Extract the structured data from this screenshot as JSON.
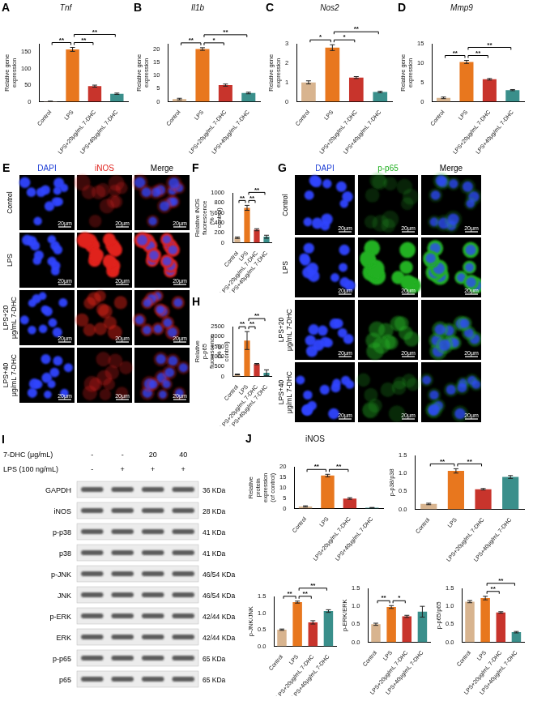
{
  "chart_data": [
    {
      "type": "bar",
      "panel": "A",
      "title": "Tnf",
      "ylabel": "Relative gene expression",
      "categories": [
        "Control",
        "LPS",
        "LPS+20μg/mL 7-DHC",
        "LPS+40μg/mL 7-DHC"
      ],
      "values": [
        1,
        158,
        47,
        24
      ],
      "errors": [
        0.5,
        6,
        3,
        2
      ],
      "colors": [
        "#d8b48f",
        "#e8771e",
        "#c8342c",
        "#3a8f8b"
      ],
      "ylim": [
        0,
        175
      ],
      "yticks": [
        0,
        50,
        100,
        150
      ],
      "grid": false,
      "annotations": [
        {
          "from": "Control",
          "to": "LPS",
          "label": "**"
        },
        {
          "from": "LPS",
          "to": "LPS+20μg/mL 7-DHC",
          "label": "**"
        },
        {
          "from": "LPS",
          "to": "LPS+40μg/mL 7-DHC",
          "label": "**"
        }
      ]
    },
    {
      "type": "bar",
      "panel": "B",
      "title": "Il1b",
      "ylabel": "Relative gene expression",
      "categories": [
        "Control",
        "LPS",
        "LPS+20μg/mL 7-DHC",
        "LPS+40μg/mL 7-DHC"
      ],
      "values": [
        1,
        20,
        6.3,
        3.3
      ],
      "errors": [
        0.3,
        0.5,
        0.4,
        0.3
      ],
      "colors": [
        "#d8b48f",
        "#e8771e",
        "#c8342c",
        "#3a8f8b"
      ],
      "ylim": [
        0,
        22
      ],
      "yticks": [
        0,
        5,
        10,
        15,
        20
      ],
      "grid": false,
      "annotations": [
        {
          "from": "Control",
          "to": "LPS",
          "label": "**"
        },
        {
          "from": "LPS",
          "to": "LPS+20μg/mL 7-DHC",
          "label": "*"
        },
        {
          "from": "LPS",
          "to": "LPS+40μg/mL 7-DHC",
          "label": "**"
        }
      ]
    },
    {
      "type": "bar",
      "panel": "C",
      "title": "Nos2",
      "ylabel": "Relative gene expression",
      "categories": [
        "Control",
        "LPS",
        "LPS+20μg/mL 7-DHC",
        "LPS+40μg/mL 7-DHC"
      ],
      "values": [
        1,
        2.8,
        1.25,
        0.5
      ],
      "errors": [
        0.08,
        0.15,
        0.05,
        0.04
      ],
      "colors": [
        "#d8b48f",
        "#e8771e",
        "#c8342c",
        "#3a8f8b"
      ],
      "ylim": [
        0,
        3
      ],
      "yticks": [
        0,
        1,
        2,
        3
      ],
      "grid": false,
      "annotations": [
        {
          "from": "Control",
          "to": "LPS",
          "label": "*"
        },
        {
          "from": "LPS",
          "to": "LPS+20μg/mL 7-DHC",
          "label": "*"
        },
        {
          "from": "LPS",
          "to": "LPS+40μg/mL 7-DHC",
          "label": "**"
        }
      ]
    },
    {
      "type": "bar",
      "panel": "D",
      "title": "Mmp9",
      "ylabel": "Relative gene expression",
      "categories": [
        "Control",
        "LPS",
        "LPS+20μg/mL 7-DHC",
        "LPS+40μg/mL 7-DHC"
      ],
      "values": [
        1,
        10.3,
        5.8,
        3
      ],
      "errors": [
        0.2,
        0.4,
        0.2,
        0.15
      ],
      "colors": [
        "#d8b48f",
        "#e8771e",
        "#c8342c",
        "#3a8f8b"
      ],
      "ylim": [
        0,
        15
      ],
      "yticks": [
        0,
        5,
        10,
        15
      ],
      "grid": false,
      "annotations": [
        {
          "from": "Control",
          "to": "LPS",
          "label": "**"
        },
        {
          "from": "LPS",
          "to": "LPS+20μg/mL 7-DHC",
          "label": "**"
        },
        {
          "from": "LPS",
          "to": "LPS+40μg/mL 7-DHC",
          "label": "**"
        }
      ]
    },
    {
      "type": "bar",
      "panel": "F",
      "ylabel": "Relative iNOS fluorescence (% of control)",
      "categories": [
        "Control",
        "LPS",
        "LPS+20μg/mL 7-DHC",
        "LPS+40μg/mL 7-DHC"
      ],
      "values": [
        100,
        700,
        260,
        120
      ],
      "errors": [
        15,
        50,
        20,
        30
      ],
      "colors": [
        "#d8b48f",
        "#e8771e",
        "#c8342c",
        "#3a8f8b"
      ],
      "ylim": [
        0,
        1000
      ],
      "yticks": [
        0,
        200,
        400,
        600,
        800,
        1000
      ],
      "grid": false,
      "annotations": [
        {
          "from": "Control",
          "to": "LPS",
          "label": "**"
        },
        {
          "from": "LPS",
          "to": "LPS+20μg/mL 7-DHC",
          "label": "**"
        },
        {
          "from": "LPS",
          "to": "LPS+40μg/mL 7-DHC",
          "label": "**"
        }
      ]
    },
    {
      "type": "bar",
      "panel": "H",
      "ylabel": "Relative p-p65 fluorescence (% of control)",
      "categories": [
        "Control",
        "LPS",
        "LPS+20μg/mL 7-DHC",
        "LPS+40μg/mL 7-DHC"
      ],
      "values": [
        100,
        1800,
        620,
        180
      ],
      "errors": [
        20,
        450,
        30,
        150
      ],
      "colors": [
        "#d8b48f",
        "#e8771e",
        "#c8342c",
        "#3a8f8b"
      ],
      "ylim": [
        0,
        2500
      ],
      "yticks": [
        0,
        500,
        1000,
        1500,
        2000,
        2500
      ],
      "grid": false,
      "annotations": [
        {
          "from": "Control",
          "to": "LPS",
          "label": "**"
        },
        {
          "from": "LPS",
          "to": "LPS+20μg/mL 7-DHC",
          "label": "**"
        },
        {
          "from": "LPS",
          "to": "LPS+40μg/mL 7-DHC",
          "label": "**"
        }
      ]
    },
    {
      "type": "bar",
      "panel": "J",
      "title": "iNOS",
      "ylabel": "Relative protein expression (of control)",
      "categories": [
        "Control",
        "LPS",
        "LPS+20μg/mL 7-DHC",
        "LPS+40μg/mL 7-DHC"
      ],
      "values": [
        1,
        15.8,
        4.8,
        0.4
      ],
      "errors": [
        0.3,
        0.6,
        0.4,
        0.1
      ],
      "colors": [
        "#d8b48f",
        "#e8771e",
        "#c8342c",
        "#3a8f8b"
      ],
      "ylim": [
        0,
        20
      ],
      "yticks": [
        0,
        5,
        10,
        15,
        20
      ],
      "grid": false,
      "annotations": [
        {
          "from": "Control",
          "to": "LPS",
          "label": "**"
        },
        {
          "from": "LPS",
          "to": "LPS+20μg/mL 7-DHC",
          "label": "**"
        }
      ]
    },
    {
      "type": "bar",
      "ylabel": "p-p38/p38",
      "categories": [
        "Control",
        "LPS",
        "LPS+20μg/mL 7-DHC",
        "LPS+40μg/mL 7-DHC"
      ],
      "values": [
        0.15,
        1.07,
        0.56,
        0.9
      ],
      "errors": [
        0.02,
        0.06,
        0.02,
        0.04
      ],
      "colors": [
        "#d8b48f",
        "#e8771e",
        "#c8342c",
        "#3a8f8b"
      ],
      "ylim": [
        0,
        1.5
      ],
      "yticks": [
        {
          "value": 0,
          "label": "0.0"
        },
        0.5,
        {
          "value": 1,
          "label": "1.0"
        },
        1.5
      ],
      "grid": false,
      "annotations": [
        {
          "from": "Control",
          "to": "LPS",
          "label": "**"
        },
        {
          "from": "LPS",
          "to": "LPS+20μg/mL 7-DHC",
          "label": "**"
        }
      ]
    },
    {
      "type": "bar",
      "ylabel": "p-JNK/JNK",
      "categories": [
        "Control",
        "LPS",
        "LPS+20μg/mL 7-DHC",
        "LPS+40μg/mL 7-DHC"
      ],
      "values": [
        0.5,
        1.33,
        0.72,
        1.06
      ],
      "errors": [
        0.02,
        0.03,
        0.05,
        0.04
      ],
      "colors": [
        "#d8b48f",
        "#e8771e",
        "#c8342c",
        "#3a8f8b"
      ],
      "ylim": [
        0,
        1.5
      ],
      "yticks": [
        {
          "value": 0,
          "label": "0.0"
        },
        0.5,
        {
          "value": 1,
          "label": "1.0"
        },
        1.5
      ],
      "grid": false,
      "annotations": [
        {
          "from": "Control",
          "to": "LPS",
          "label": "**"
        },
        {
          "from": "LPS",
          "to": "LPS+20μg/mL 7-DHC",
          "label": "**"
        },
        {
          "from": "LPS",
          "to": "LPS+40μg/mL 7-DHC",
          "label": "**"
        }
      ]
    },
    {
      "type": "bar",
      "ylabel": "p-ERK/ERK",
      "categories": [
        "Control",
        "LPS",
        "LPS+20μg/mL 7-DHC",
        "LPS+40μg/mL 7-DHC"
      ],
      "values": [
        0.5,
        0.98,
        0.72,
        0.85
      ],
      "errors": [
        0.03,
        0.04,
        0.03,
        0.15
      ],
      "colors": [
        "#d8b48f",
        "#e8771e",
        "#c8342c",
        "#3a8f8b"
      ],
      "ylim": [
        0,
        1.5
      ],
      "yticks": [
        {
          "value": 0,
          "label": "0.0"
        },
        0.5,
        {
          "value": 1,
          "label": "1.0"
        },
        1.5
      ],
      "grid": false,
      "annotations": [
        {
          "from": "Control",
          "to": "LPS",
          "label": "**"
        },
        {
          "from": "LPS",
          "to": "LPS+20μg/mL 7-DHC",
          "label": "*"
        }
      ]
    },
    {
      "type": "bar",
      "ylabel": "p-p65/p65",
      "categories": [
        "Control",
        "LPS",
        "LPS+20μg/mL 7-DHC",
        "LPS+40μg/mL 7-DHC"
      ],
      "values": [
        1.13,
        1.23,
        0.83,
        0.28
      ],
      "errors": [
        0.03,
        0.05,
        0.02,
        0.02
      ],
      "colors": [
        "#d8b48f",
        "#e8771e",
        "#c8342c",
        "#3a8f8b"
      ],
      "ylim": [
        0,
        1.5
      ],
      "yticks": [
        {
          "value": 0,
          "label": "0.0"
        },
        0.5,
        {
          "value": 1,
          "label": "1.0"
        },
        1.5
      ],
      "grid": false,
      "annotations": [
        {
          "from": "LPS",
          "to": "LPS+20μg/mL 7-DHC",
          "label": "**"
        },
        {
          "from": "LPS",
          "to": "LPS+40μg/mL 7-DHC",
          "label": "**"
        }
      ]
    }
  ],
  "images": [
    {
      "panel": "E",
      "columns": [
        "DAPI",
        "iNOS",
        "Merge"
      ],
      "colors": [
        "#1f3fd6",
        "#e0201b",
        "#000000"
      ],
      "rows": [
        "Control",
        "LPS",
        "LPS+20 μg/mL 7-DHC",
        "LPS+40 μg/mL 7-DHC"
      ],
      "scale_bar": "20μm"
    },
    {
      "panel": "G",
      "columns": [
        "DAPI",
        "p-p65",
        "Merge"
      ],
      "colors": [
        "#1f3fd6",
        "#22b022",
        "#000000"
      ],
      "rows": [
        "Control",
        "LPS",
        "LPS+20 μg/mL 7-DHC",
        "LPS+40 μg/mL 7-DHC"
      ],
      "scale_bar": "20μm"
    }
  ],
  "blot": {
    "panel": "I",
    "conditions": [
      {
        "label": "7-DHC (μg/mL)",
        "lanes": [
          "-",
          "-",
          "20",
          "40"
        ]
      },
      {
        "label": "LPS (100 ng/mL)",
        "lanes": [
          "-",
          "+",
          "+",
          "+"
        ]
      }
    ],
    "bands": [
      {
        "name": "GAPDH",
        "size": "36 KDa"
      },
      {
        "name": "iNOS",
        "size": "28 KDa"
      },
      {
        "name": "p-p38",
        "size": "41 KDa"
      },
      {
        "name": "p38",
        "size": "41 KDa"
      },
      {
        "name": "p-JNK",
        "size": "46/54 KDa"
      },
      {
        "name": "JNK",
        "size": "46/54 KDa"
      },
      {
        "name": "p-ERK",
        "size": "42/44 KDa"
      },
      {
        "name": "ERK",
        "size": "42/44 KDa"
      },
      {
        "name": "p-p65",
        "size": "65 KDa"
      },
      {
        "name": "p65",
        "size": "65 KDa"
      }
    ]
  }
}
